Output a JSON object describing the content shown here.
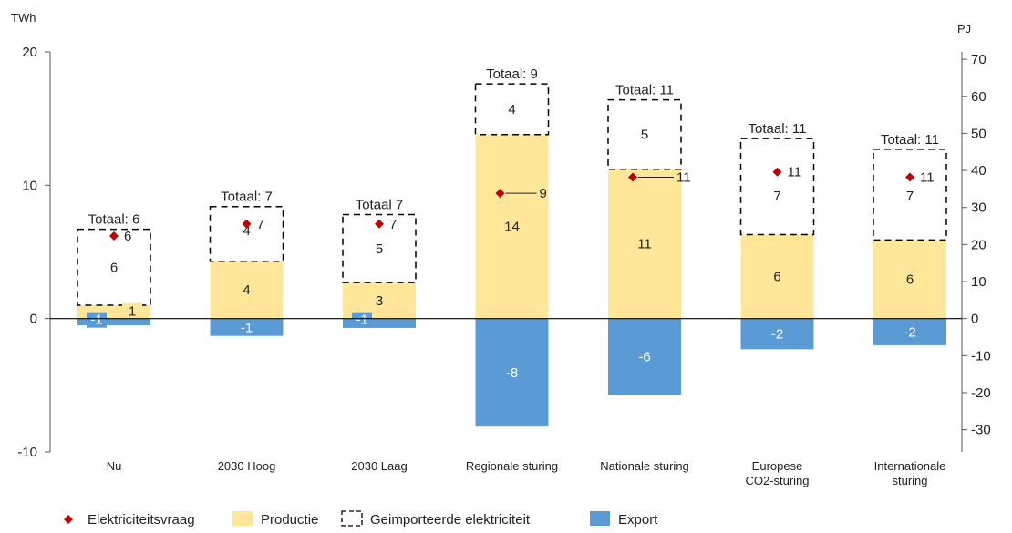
{
  "chart_data": {
    "type": "bar",
    "stacked": true,
    "y_left_unit": "TWh",
    "y_right_unit": "PJ",
    "ylim": [
      -10,
      20
    ],
    "y_ticks": [
      -10,
      0,
      10,
      20
    ],
    "y_right_ticks": [
      -30,
      -20,
      -10,
      0,
      10,
      20,
      30,
      40,
      50,
      60,
      70
    ],
    "grid": false,
    "legend_position": "bottom-left",
    "categories": [
      [
        "Nu"
      ],
      [
        "2030 Hoog"
      ],
      [
        "2030 Laag"
      ],
      [
        "Regionale sturing"
      ],
      [
        "Nationale sturing"
      ],
      [
        "Europese",
        "CO2-sturing"
      ],
      [
        "Internationale",
        "sturing"
      ]
    ],
    "series": [
      {
        "name": "Productie",
        "color": "#FFE699",
        "values": [
          1,
          4.3,
          2.7,
          13.8,
          11.2,
          6.3,
          5.9
        ],
        "labels": [
          "1",
          "4",
          "3",
          "14",
          "11",
          "6",
          "6"
        ]
      },
      {
        "name": "Geimporteerde elektriciteit",
        "style": "dashed-outline",
        "values": [
          5.7,
          4.1,
          5.1,
          3.8,
          5.2,
          7.2,
          6.8
        ],
        "labels": [
          "6",
          "4",
          "5",
          "4",
          "5",
          "7",
          "7"
        ]
      },
      {
        "name": "Export",
        "color": "#5B9BD5",
        "values": [
          -0.5,
          -1.3,
          -0.7,
          -8.1,
          -5.7,
          -2.3,
          -2.0
        ],
        "labels": [
          "-1",
          "-1",
          "-1",
          "-8",
          "-6",
          "-2",
          "-2"
        ]
      },
      {
        "name": "Elektriciteitsvraag",
        "marker": "diamond",
        "color": "#C00000",
        "values": [
          6.2,
          7.1,
          7.1,
          9.4,
          10.6,
          11.0,
          10.6
        ],
        "labels": [
          "6",
          "7",
          "7",
          "9",
          "11",
          "11",
          "11"
        ]
      }
    ],
    "totals": [
      "Totaal: 6",
      "Totaal: 7",
      "Totaal 7",
      "Totaal: 9",
      "Totaal: 11",
      "Totaal: 11",
      "Totaal: 11"
    ]
  },
  "legend": [
    {
      "label": "Elektriciteitsvraag",
      "icon": "diamond",
      "color": "#C00000"
    },
    {
      "label": "Productie",
      "icon": "fill",
      "color": "#FFE699"
    },
    {
      "label": "Geimporteerde elektriciteit",
      "icon": "dashed-box"
    },
    {
      "label": "Export",
      "icon": "fill",
      "color": "#5B9BD5"
    }
  ]
}
